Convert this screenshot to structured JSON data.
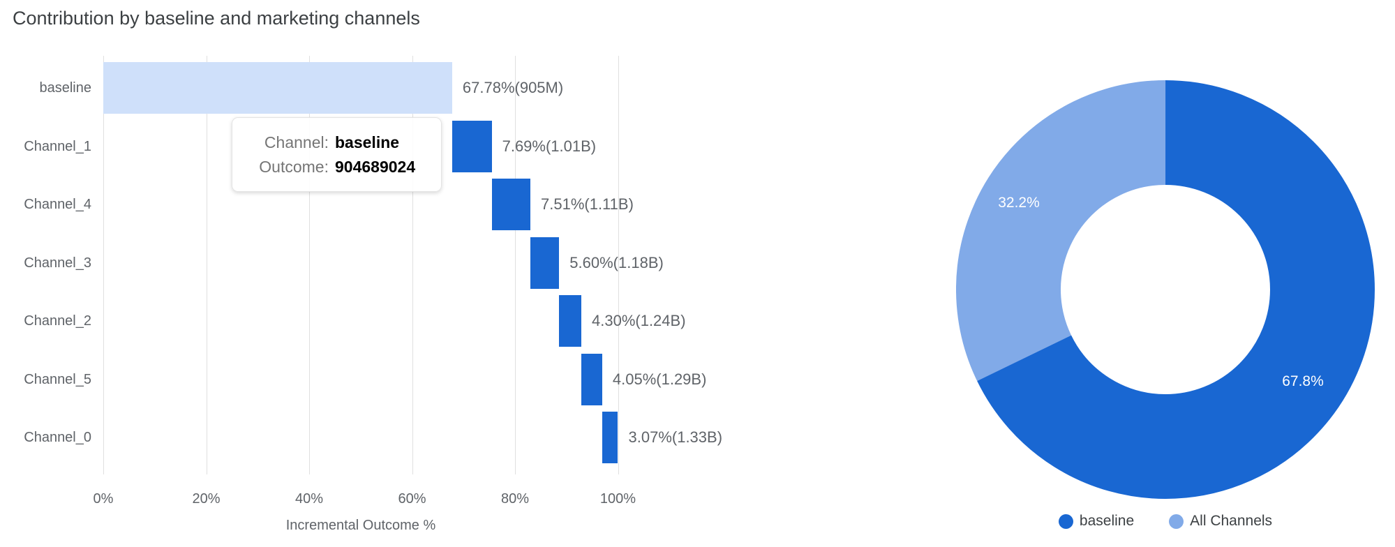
{
  "chart_data": [
    {
      "type": "bar",
      "subtype": "waterfall",
      "orientation": "horizontal",
      "title": "Contribution by baseline and marketing channels",
      "xlabel": "Incremental Outcome %",
      "xlim": [
        0,
        100
      ],
      "grid": true,
      "categories": [
        "baseline",
        "Channel_1",
        "Channel_4",
        "Channel_3",
        "Channel_2",
        "Channel_5",
        "Channel_0"
      ],
      "series": [
        {
          "name": "Incremental Outcome %",
          "values": [
            67.78,
            7.69,
            7.51,
            5.6,
            4.3,
            4.05,
            3.07
          ]
        }
      ],
      "start_pct": [
        0,
        67.78,
        75.47,
        82.98,
        88.58,
        92.88,
        96.93
      ],
      "bar_labels": [
        "67.78%(905M)",
        "7.69%(1.01B)",
        "7.51%(1.11B)",
        "5.60%(1.18B)",
        "4.30%(1.24B)",
        "4.05%(1.29B)",
        "3.07%(1.33B)"
      ],
      "cumulative_outcome": [
        "905M",
        "1.01B",
        "1.11B",
        "1.18B",
        "1.24B",
        "1.29B",
        "1.33B"
      ],
      "x_tick_values": [
        0,
        20,
        40,
        60,
        80,
        100
      ],
      "x_tick_labels": [
        "0%",
        "20%",
        "40%",
        "60%",
        "80%",
        "100%"
      ],
      "bar_colors": [
        "#CFE0FA",
        "#1967D2",
        "#1967D2",
        "#1967D2",
        "#1967D2",
        "#1967D2",
        "#1967D2"
      ]
    },
    {
      "type": "pie",
      "donut": true,
      "legend_position": "bottom",
      "labels_position": "inside",
      "series": [
        {
          "name": "baseline",
          "value": 67.8,
          "label": "67.8%",
          "color": "#1967D2"
        },
        {
          "name": "All Channels",
          "value": 32.2,
          "label": "32.2%",
          "color": "#81AAE8"
        }
      ]
    }
  ],
  "tooltip": {
    "rows": [
      {
        "label": "Channel:",
        "value": "baseline"
      },
      {
        "label": "Outcome:",
        "value": "904689024"
      }
    ]
  }
}
